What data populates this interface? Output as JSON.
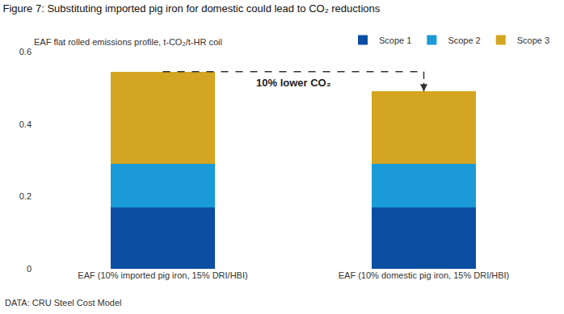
{
  "chart_data": {
    "type": "bar",
    "title": "Figure 7: Substituting imported pig iron for domestic could lead to CO₂ reductions",
    "subtitle": "EAF flat rolled emissions profile, t-CO₂/t-HR coil",
    "source": "DATA: CRU Steel Cost Model",
    "annotations": [
      "10% lower CO₂"
    ],
    "categories": [
      "EAF (10% imported pig iron, 15% DRI/HBI)",
      "EAF (10% domestic pig iron, 15% DRI/HBI)"
    ],
    "series": [
      {
        "name": "Scope 1",
        "color": "#0b4ea2",
        "values": [
          0.17,
          0.17
        ]
      },
      {
        "name": "Scope 2",
        "color": "#1a9ad6",
        "values": [
          0.12,
          0.12
        ]
      },
      {
        "name": "Scope 3",
        "color": "#d4a520",
        "values": [
          0.255,
          0.2
        ]
      }
    ],
    "stacked": true,
    "ylim": [
      0,
      0.6
    ],
    "yticks": [
      0,
      0.2,
      0.4,
      0.6
    ],
    "grid": false,
    "legend": "top right"
  }
}
